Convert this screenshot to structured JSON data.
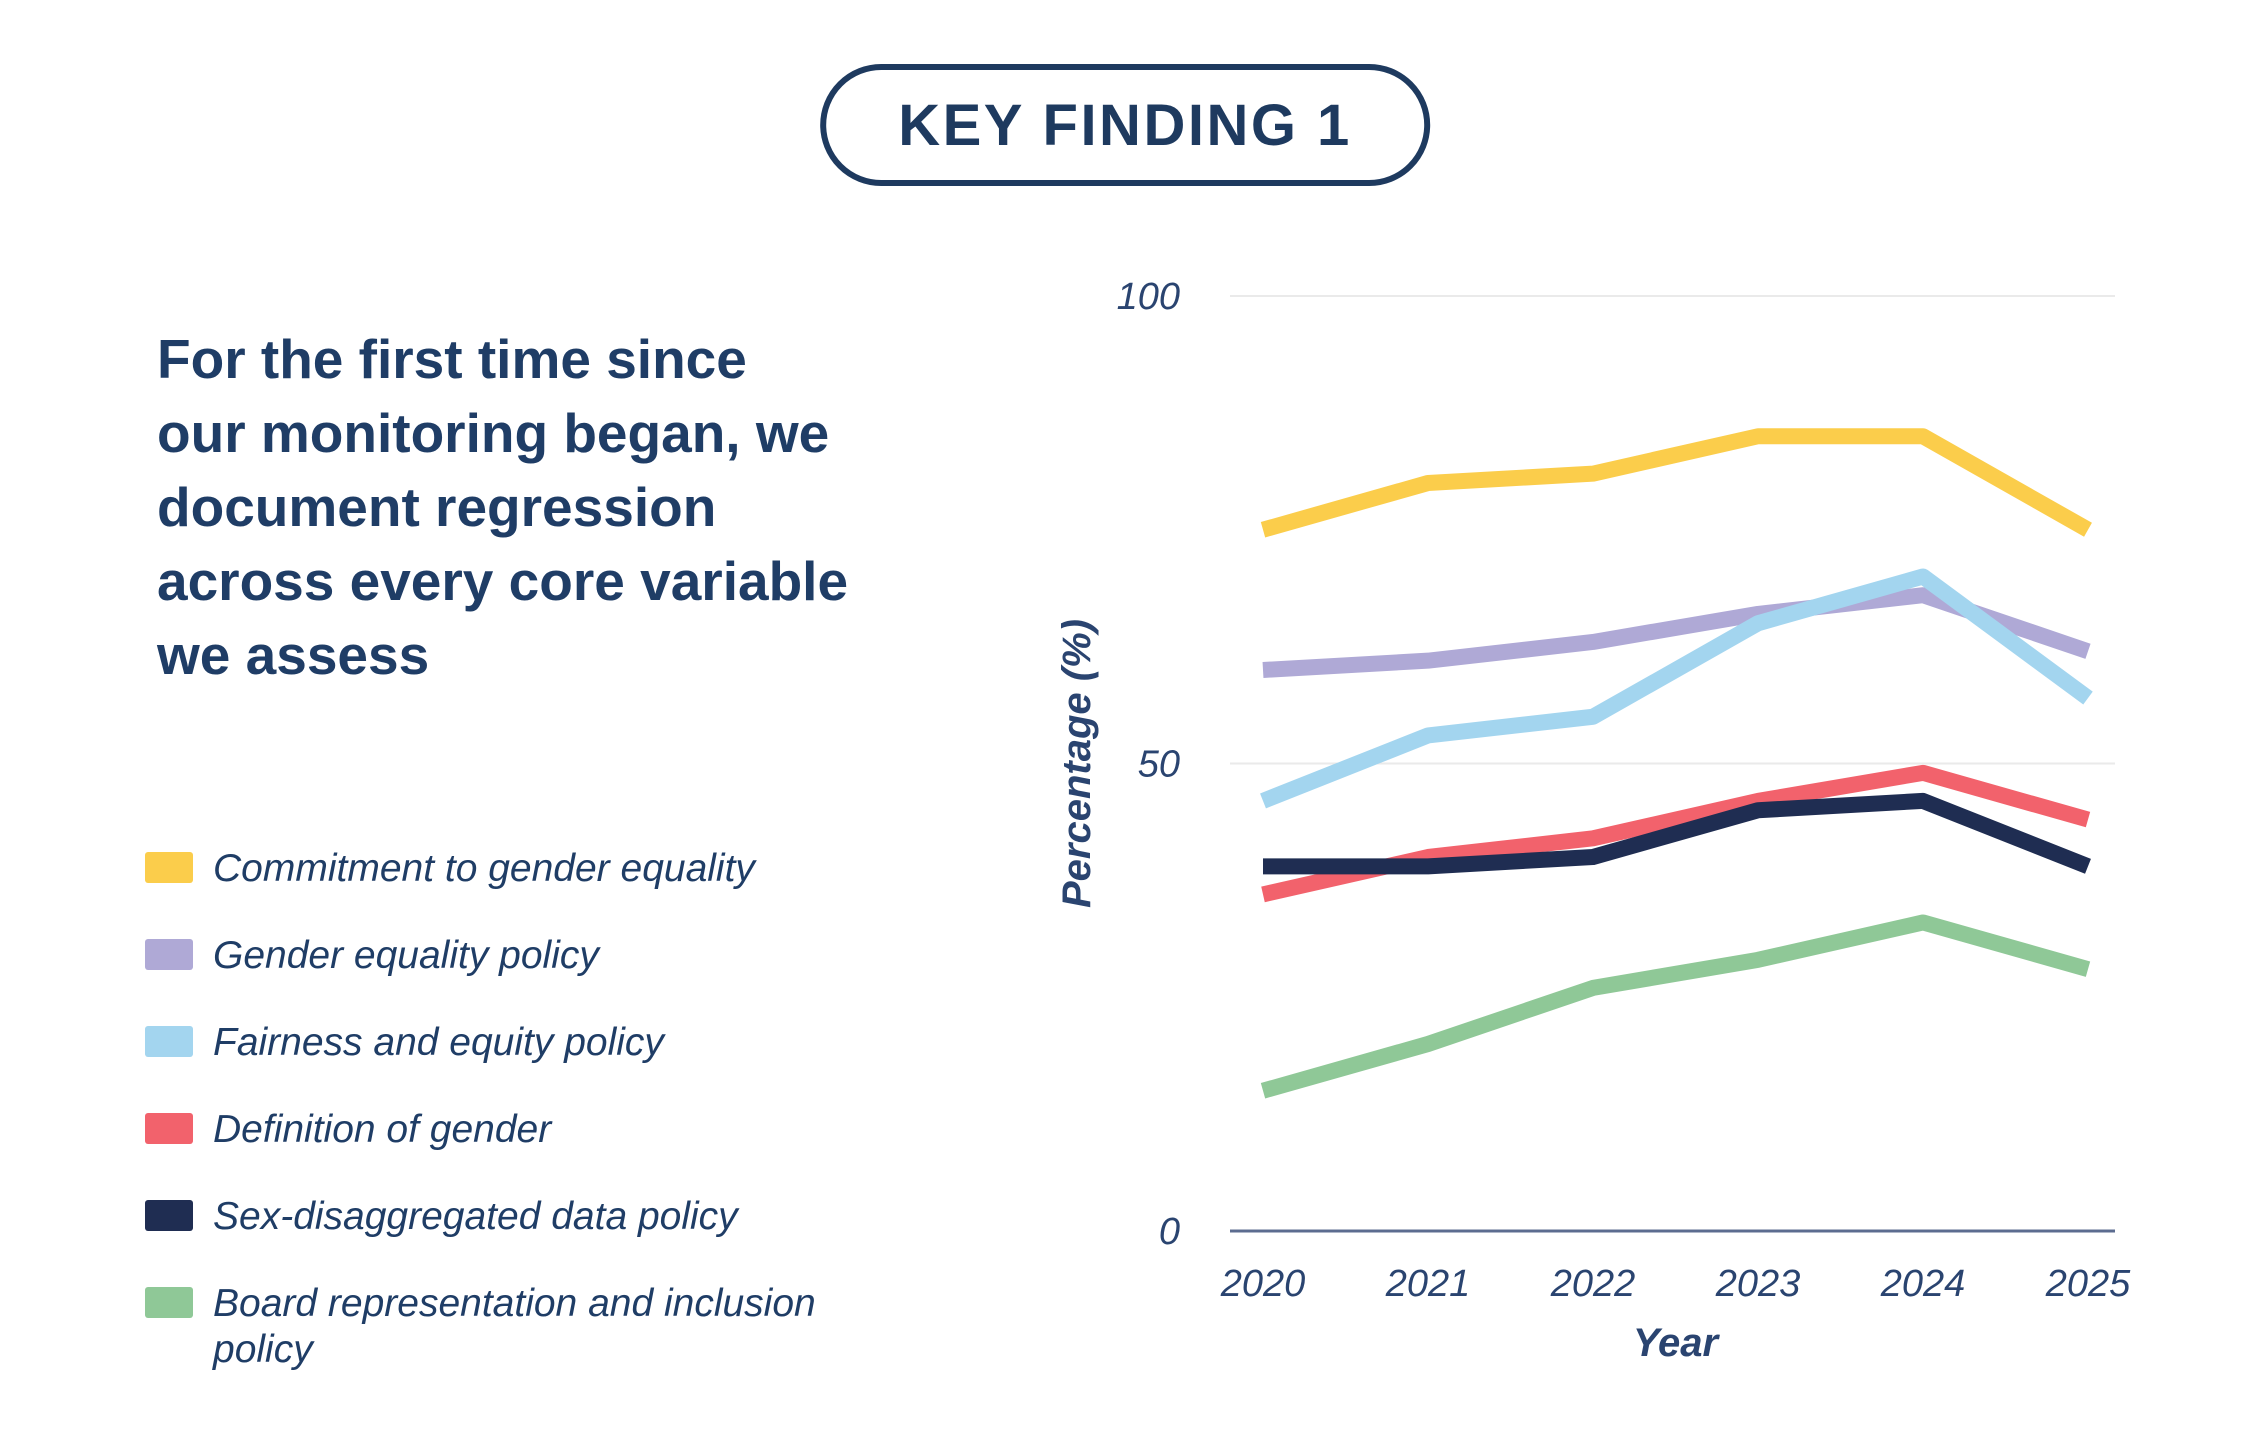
{
  "badge": {
    "label": "KEY FINDING 1"
  },
  "headline_lines": [
    "For the first time since",
    "our monitoring began, we",
    "document regression",
    "across every core variable",
    "we assess"
  ],
  "colors": {
    "navy_text": "#1F3D66",
    "badge_border": "#1E3A5F",
    "axis_line": "#5C6C90",
    "gridline": "#EAEAEA",
    "tick_text": "#2A4470"
  },
  "chart_data": {
    "type": "line",
    "x": [
      2020,
      2021,
      2022,
      2023,
      2024,
      2025
    ],
    "series": [
      {
        "name": "Commitment to gender equality",
        "color": "#FBCD4B",
        "values": [
          75,
          80,
          81,
          85,
          85,
          75
        ]
      },
      {
        "name": "Gender equality policy",
        "color": "#AFA9D6",
        "values": [
          60,
          61,
          63,
          66,
          68,
          62
        ]
      },
      {
        "name": "Fairness and equity policy",
        "color": "#A3D5EF",
        "values": [
          46,
          53,
          55,
          65,
          70,
          57
        ]
      },
      {
        "name": "Definition of gender",
        "color": "#F2626C",
        "values": [
          36,
          40,
          42,
          46,
          49,
          44
        ]
      },
      {
        "name": "Sex-disaggregated data policy",
        "color": "#1F2D52",
        "values": [
          39,
          39,
          40,
          45,
          46,
          39
        ]
      },
      {
        "name": "Board representation and inclusion policy",
        "color": "#8FC897",
        "values": [
          15,
          20,
          26,
          29,
          33,
          28
        ]
      }
    ],
    "xlabel": "Year",
    "ylabel": "Percentage (%)",
    "ylim": [
      0,
      100
    ],
    "y_ticks": [
      0,
      50,
      100
    ],
    "grid": "horizontal",
    "legend_position": "left"
  }
}
